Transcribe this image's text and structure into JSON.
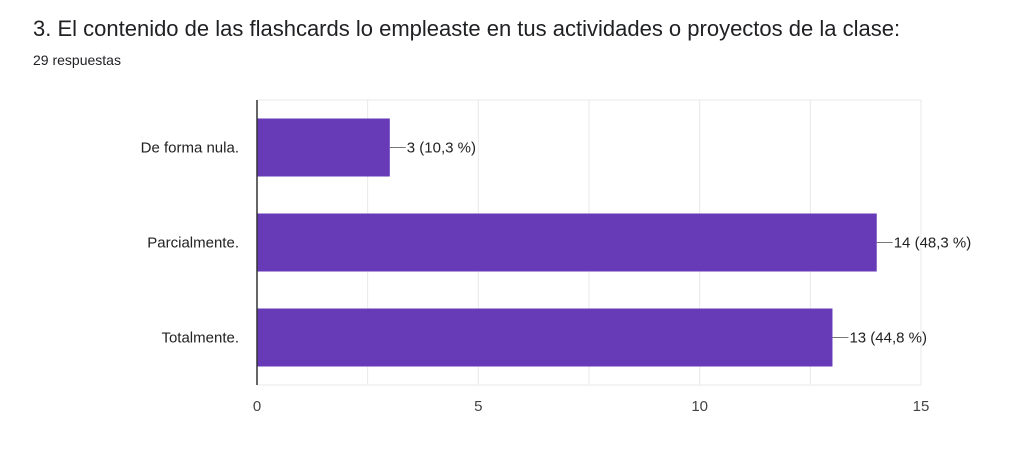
{
  "question": {
    "title": "3. El contenido de las flashcards lo empleaste en tus actividades o proyectos de la clase:",
    "responses": "29 respuestas"
  },
  "colors": {
    "bar": "#673ab7",
    "grid": "#e8e8e8",
    "axis": "#333333"
  },
  "chart_data": {
    "type": "bar",
    "orientation": "horizontal",
    "categories": [
      "De forma nula.",
      "Parcialmente.",
      "Totalmente."
    ],
    "values": [
      3,
      14,
      13
    ],
    "data_labels": [
      "3 (10,3 %)",
      "14 (48,3 %)",
      "13 (44,8 %)"
    ],
    "xlim": [
      0,
      15
    ],
    "xticks": [
      0,
      5,
      10,
      15
    ],
    "grid": true,
    "legend": "none"
  }
}
